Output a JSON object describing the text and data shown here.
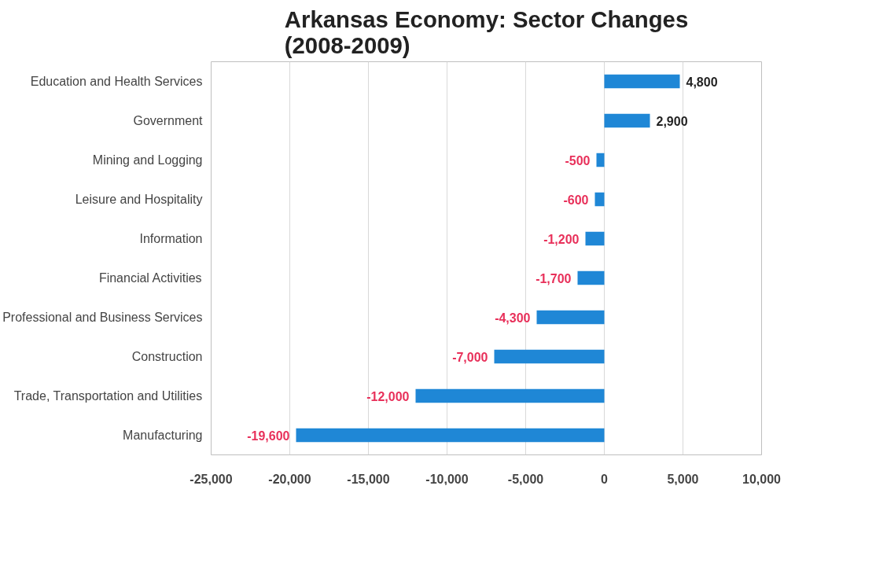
{
  "chart_data": {
    "type": "bar",
    "orientation": "horizontal",
    "title": "Arkansas Economy: Sector Changes\n(2008-2009)",
    "categories": [
      "Education and Health Services",
      "Government",
      "Mining and Logging",
      "Leisure and Hospitality",
      "Information",
      "Financial Activities",
      "Professional and Business Services",
      "Construction",
      "Trade, Transportation and Utilities",
      "Manufacturing"
    ],
    "values": [
      4800,
      2900,
      -500,
      -600,
      -1200,
      -1700,
      -4300,
      -7000,
      -12000,
      -19600
    ],
    "color": "#1f87d6",
    "value_labels": [
      "4,800",
      "2,900",
      "-500",
      "-600",
      "-1,200",
      "-1,700",
      "-4,300",
      "-7,000",
      "-12,000",
      "-19,600"
    ],
    "xlim": [
      -25000,
      10000
    ],
    "xticks": [
      {
        "value": -25000,
        "label": "-25,000"
      },
      {
        "value": -20000,
        "label": "-20,000"
      },
      {
        "value": -15000,
        "label": "-15,000"
      },
      {
        "value": -10000,
        "label": "-10,000"
      },
      {
        "value": -5000,
        "label": "-5,000"
      },
      0,
      {
        "value": 5000,
        "label": "5,000"
      },
      {
        "value": 10000,
        "label": "10,000"
      }
    ],
    "grid": "x"
  }
}
